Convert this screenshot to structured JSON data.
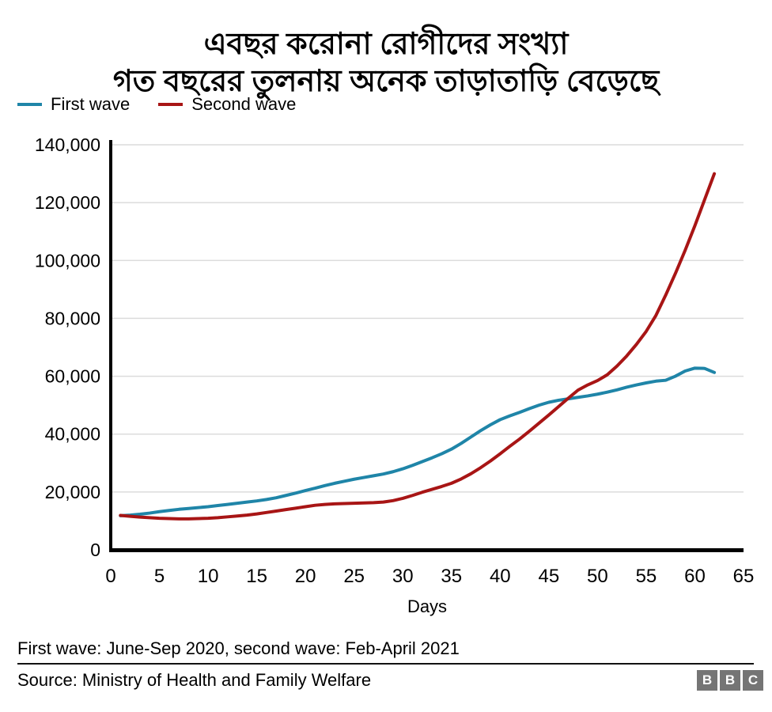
{
  "title": {
    "line1": "এবছর করোনা রোগীদের সংখ্যা",
    "line2": "গত বছরের তুলনায় অনেক তাড়াতাড়ি বেড়েছে"
  },
  "legend": [
    {
      "label": "First wave",
      "color": "#1f85a8"
    },
    {
      "label": "Second wave",
      "color": "#a81515"
    }
  ],
  "chart_data": {
    "type": "line",
    "title": "এবছর করোনা রোগীদের সংখ্যা গত বছরের তুলনায় অনেক তাড়াতাড়ি বেড়েছে",
    "xlabel": "Days",
    "ylabel": "",
    "xlim": [
      0,
      65
    ],
    "xtick_step": 5,
    "ylim": [
      0,
      140000
    ],
    "ytick_step": 20000,
    "grid": "horizontal",
    "legend_position": "top-left",
    "x": [
      1,
      2,
      3,
      4,
      5,
      6,
      7,
      8,
      9,
      10,
      11,
      12,
      13,
      14,
      15,
      16,
      17,
      18,
      19,
      20,
      21,
      22,
      23,
      24,
      25,
      26,
      27,
      28,
      29,
      30,
      31,
      32,
      33,
      34,
      35,
      36,
      37,
      38,
      39,
      40,
      41,
      42,
      43,
      44,
      45,
      46,
      47,
      48,
      49,
      50,
      51,
      52,
      53,
      54,
      55,
      56,
      57,
      58,
      59,
      60,
      61,
      62
    ],
    "series": [
      {
        "name": "First wave",
        "color": "#1f85a8",
        "values": [
          11800,
          12000,
          12300,
          12700,
          13200,
          13600,
          14000,
          14300,
          14600,
          14900,
          15300,
          15700,
          16100,
          16500,
          16900,
          17400,
          18000,
          18800,
          19600,
          20500,
          21300,
          22200,
          23000,
          23700,
          24400,
          25000,
          25600,
          26200,
          27000,
          28000,
          29200,
          30500,
          31800,
          33200,
          34800,
          36800,
          39000,
          41200,
          43200,
          45000,
          46300,
          47500,
          48800,
          50000,
          51000,
          51700,
          52200,
          52700,
          53200,
          53800,
          54500,
          55300,
          56200,
          57000,
          57700,
          58300,
          58600,
          60000,
          61800,
          62800,
          62700,
          61300
        ]
      },
      {
        "name": "Second wave",
        "color": "#a81515",
        "values": [
          11900,
          11600,
          11300,
          11100,
          10900,
          10800,
          10700,
          10700,
          10800,
          10900,
          11100,
          11400,
          11700,
          12000,
          12400,
          12900,
          13400,
          13900,
          14400,
          14900,
          15400,
          15700,
          15900,
          16000,
          16100,
          16200,
          16300,
          16500,
          17000,
          17800,
          18800,
          19900,
          20900,
          21900,
          23000,
          24500,
          26300,
          28400,
          30700,
          33200,
          35800,
          38300,
          41000,
          43800,
          46600,
          49500,
          52400,
          55200,
          57000,
          58500,
          60500,
          63500,
          67000,
          71000,
          75500,
          81000,
          88000,
          95500,
          103500,
          112000,
          121000,
          130000
        ]
      }
    ]
  },
  "footer": {
    "note": "First wave: June-Sep 2020, second wave: Feb-April 2021",
    "source": "Source: Ministry of Health and Family Welfare",
    "logo_letters": [
      "B",
      "B",
      "C"
    ]
  },
  "colors": {
    "axis": "#000000",
    "grid": "#dcdcdc",
    "text": "#000000",
    "logo_bg": "#757575"
  }
}
